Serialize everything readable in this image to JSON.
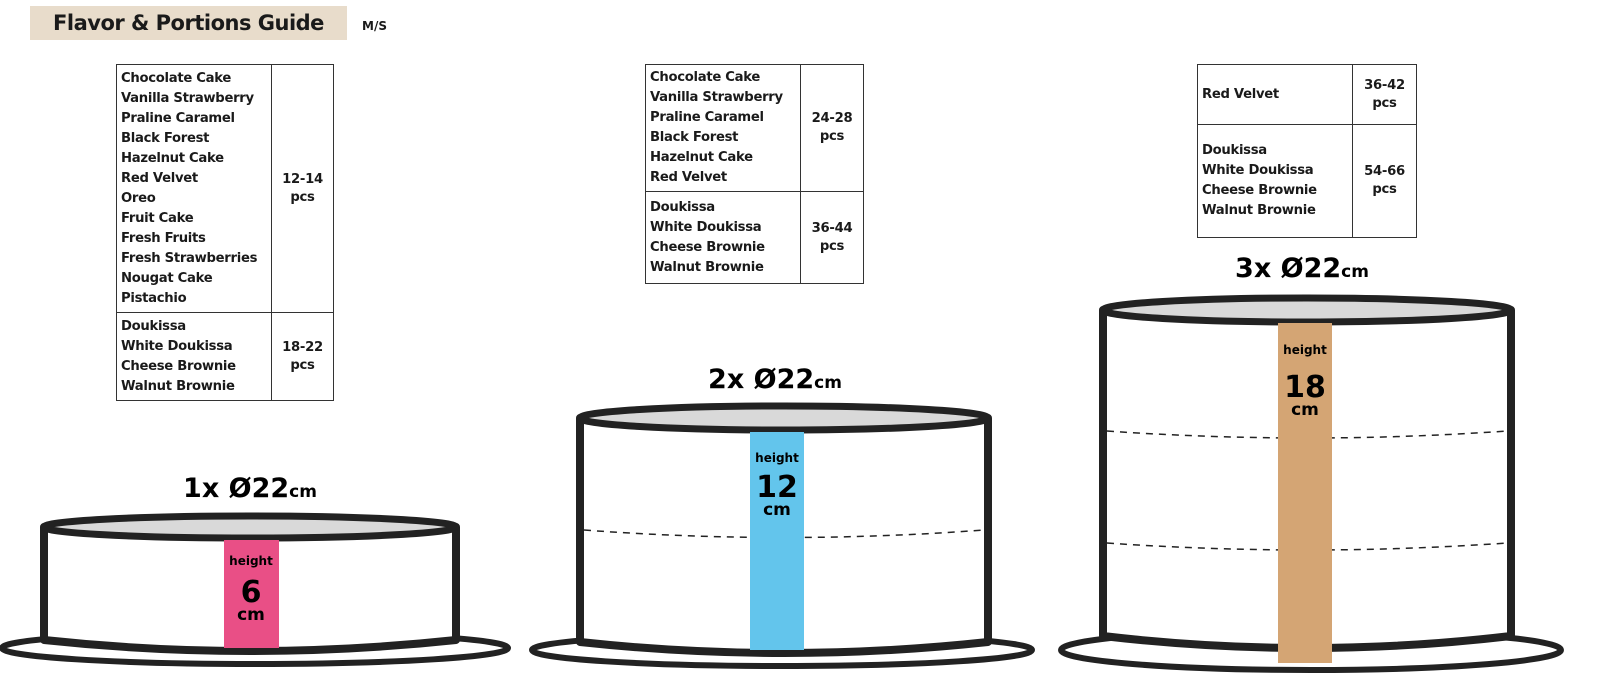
{
  "header": {
    "title": "Flavor & Portions Guide",
    "code": "M/S"
  },
  "tables": [
    {
      "rows": [
        {
          "flavors": [
            "Chocolate Cake",
            "Vanilla Strawberry",
            "Praline Caramel",
            "Black Forest",
            "Hazelnut Cake",
            "Red Velvet",
            "Oreo",
            "Fruit Cake",
            "Fresh Fruits",
            "Fresh Strawberries",
            "Nougat Cake",
            "Pistachio"
          ],
          "portions": "12-14",
          "unit": "pcs"
        },
        {
          "flavors": [
            "Doukissa",
            "White Doukissa",
            "Cheese Brownie",
            "Walnut Brownie"
          ],
          "portions": "18-22",
          "unit": "pcs"
        }
      ]
    },
    {
      "rows": [
        {
          "flavors": [
            "Chocolate Cake",
            "Vanilla Strawberry",
            "Praline Caramel",
            "Black Forest",
            "Hazelnut Cake",
            "Red Velvet"
          ],
          "portions": "24-28",
          "unit": "pcs"
        },
        {
          "flavors": [
            "Doukissa",
            "White Doukissa",
            "Cheese Brownie",
            "Walnut Brownie"
          ],
          "portions": "36-44",
          "unit": "pcs"
        }
      ]
    },
    {
      "rows": [
        {
          "flavors": [
            "Red Velvet"
          ],
          "portions": "36-42",
          "unit": "pcs"
        },
        {
          "flavors": [
            "Doukissa",
            "White Doukissa",
            "Cheese Brownie",
            "Walnut Brownie"
          ],
          "portions": "54-66",
          "unit": "pcs"
        }
      ]
    }
  ],
  "cakes": [
    {
      "label": "1x  Ø22",
      "unit": "cm",
      "height_label": "height",
      "height": "6",
      "height_unit": "cm",
      "color": "#e94f86"
    },
    {
      "label": "2x  Ø22",
      "unit": "cm",
      "height_label": "height",
      "height": "12",
      "height_unit": "cm",
      "color": "#63c5ec"
    },
    {
      "label": "3x  Ø22",
      "unit": "cm",
      "height_label": "height",
      "height": "18",
      "height_unit": "cm",
      "color": "#d4a574"
    }
  ]
}
